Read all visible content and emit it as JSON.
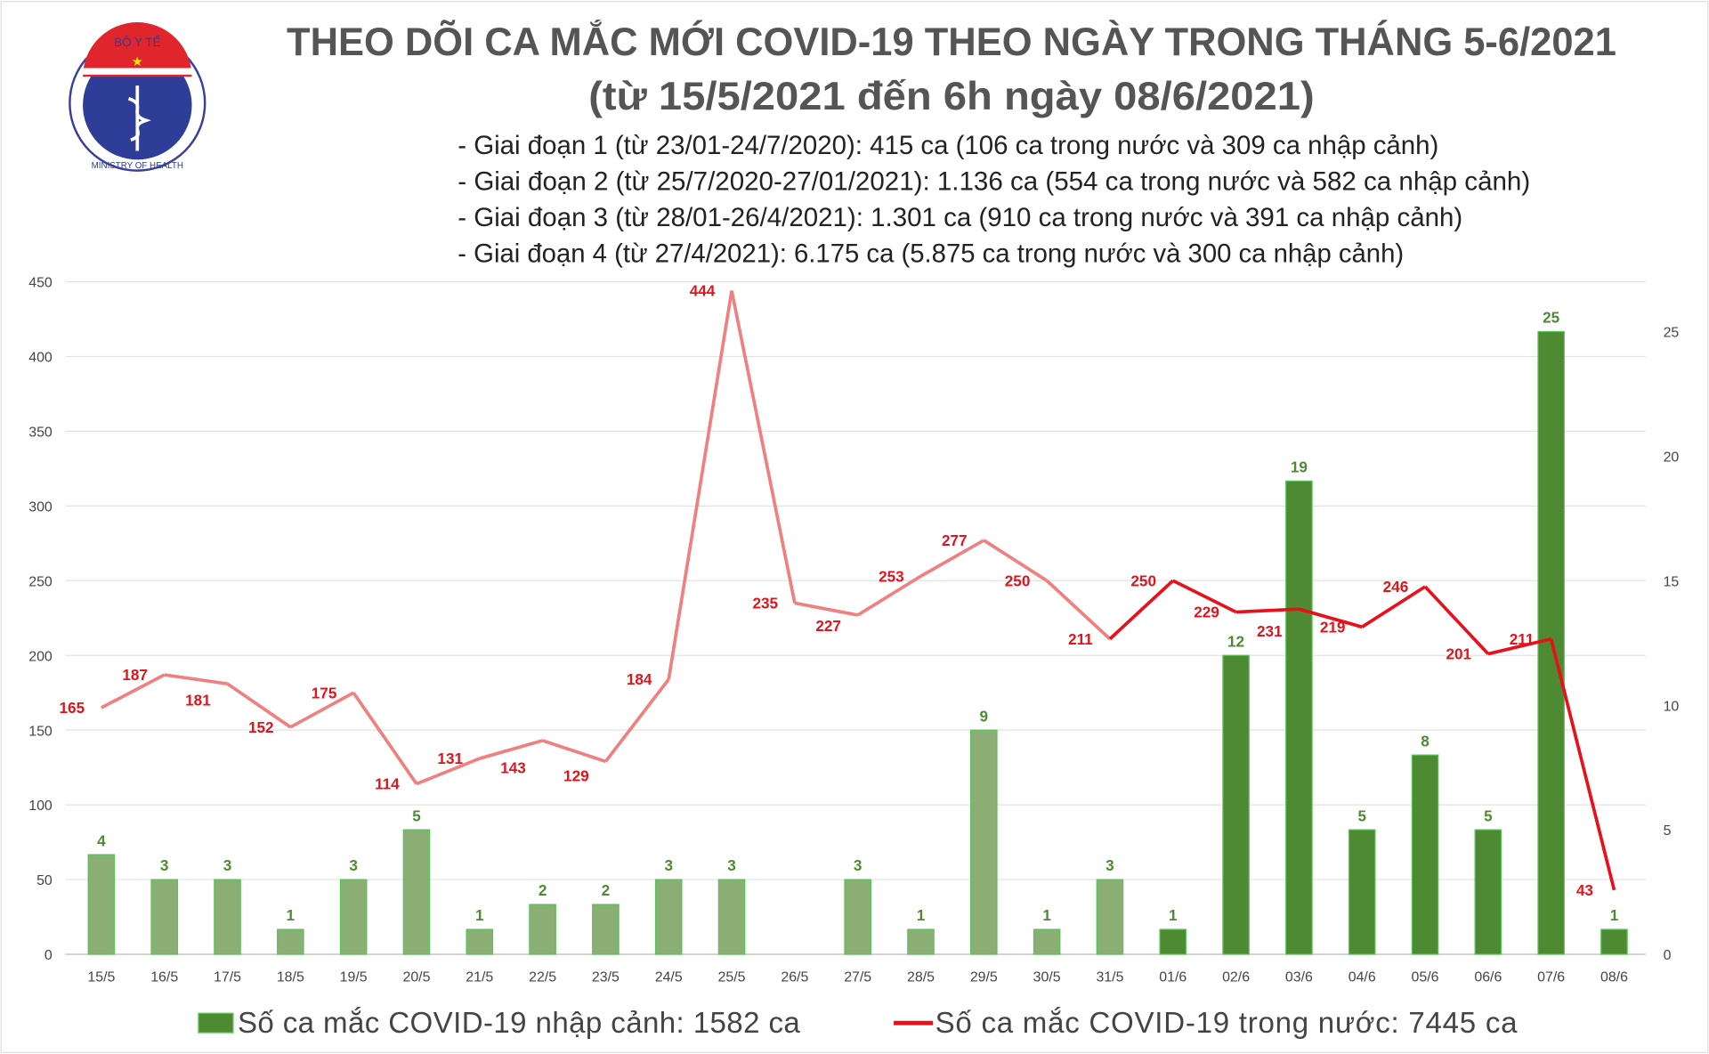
{
  "logo": {
    "text_top": "BỘ Y TẾ",
    "text_bottom": "MINISTRY OF HEALTH"
  },
  "title": "THEO DÕI CA MẮC MỚI COVID-19 THEO NGÀY TRONG THÁNG 5-6/2021",
  "subtitle": "(từ 15/5/2021 đến 6h ngày 08/6/2021)",
  "notes": [
    "- Giai đoạn 1 (từ 23/01-24/7/2020): 415 ca (106 ca trong nước và 309 ca nhập cảnh)",
    "- Giai đoạn 2 (từ 25/7/2020-27/01/2021): 1.136 ca (554 ca trong nước và 582 ca nhập cảnh)",
    "- Giai đoạn 3 (từ 28/01-26/4/2021): 1.301 ca (910 ca trong nước và 391 ca nhập cảnh)",
    "- Giai đoạn 4 (từ 27/4/2021): 6.175 ca (5.875 ca trong nước và 300 ca nhập cảnh)"
  ],
  "chart_data": {
    "type": "bar+line",
    "categories": [
      "15/5",
      "16/5",
      "17/5",
      "18/5",
      "19/5",
      "20/5",
      "21/5",
      "22/5",
      "23/5",
      "24/5",
      "25/5",
      "26/5",
      "27/5",
      "28/5",
      "29/5",
      "30/5",
      "31/5",
      "01/6",
      "02/6",
      "03/6",
      "04/6",
      "05/6",
      "06/6",
      "07/6",
      "08/6"
    ],
    "series": [
      {
        "name": "Số ca mắc COVID-19 nhập cảnh: 1582 ca",
        "type": "bar",
        "axis": "right",
        "values": [
          4,
          3,
          3,
          1,
          3,
          5,
          1,
          2,
          2,
          3,
          3,
          null,
          3,
          1,
          9,
          1,
          3,
          1,
          12,
          19,
          5,
          8,
          5,
          25,
          1
        ],
        "color_may": "#8aae74",
        "color_june": "#4e8a32"
      },
      {
        "name": "Số ca mắc COVID-19 trong nước: 7445 ca",
        "type": "line",
        "axis": "left",
        "values": [
          165,
          187,
          181,
          152,
          175,
          114,
          131,
          143,
          129,
          184,
          444,
          235,
          227,
          253,
          277,
          250,
          211,
          250,
          229,
          231,
          219,
          246,
          201,
          211,
          43
        ],
        "color_may": "#f08080",
        "color_june": "#e8101a"
      }
    ],
    "y_left": {
      "range": [
        0,
        450
      ],
      "ticks": [
        0,
        50,
        100,
        150,
        200,
        250,
        300,
        350,
        400,
        450
      ]
    },
    "y_right": {
      "range": [
        0,
        27
      ],
      "ticks": [
        0,
        5,
        10,
        15,
        20,
        25
      ]
    },
    "grid": true,
    "legend": "bottom",
    "label_color_line": "#e0141c",
    "label_color_bar": "#4e8a32"
  }
}
